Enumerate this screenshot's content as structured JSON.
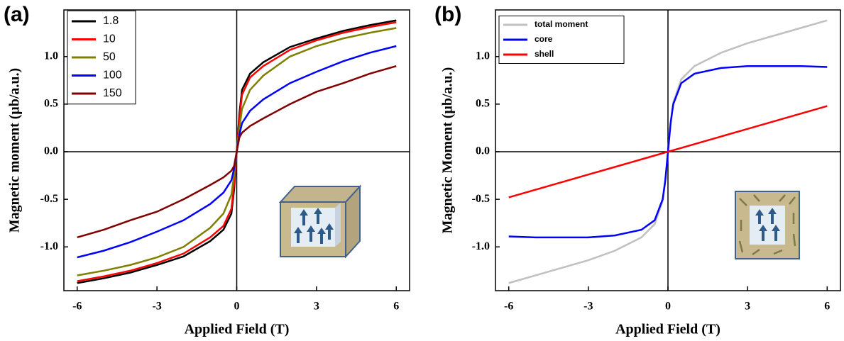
{
  "chart_data": [
    {
      "type": "line",
      "panel_label": "(a)",
      "x_label": "Applied Field (T)",
      "y_label": "Magnetic moment (μb/a.u.)",
      "x": [
        -6,
        -5,
        -4,
        -3,
        -2,
        -1,
        -0.5,
        -0.2,
        -0.1,
        0,
        0.1,
        0.2,
        0.5,
        1,
        2,
        3,
        4,
        5,
        6
      ],
      "series": [
        {
          "name": "1.8",
          "color": "#000000",
          "values": [
            -1.38,
            -1.33,
            -1.27,
            -1.19,
            -1.1,
            -0.94,
            -0.82,
            -0.65,
            -0.4,
            0,
            0.4,
            0.65,
            0.82,
            0.94,
            1.1,
            1.19,
            1.27,
            1.33,
            1.38
          ]
        },
        {
          "name": "10",
          "color": "#ff0000",
          "values": [
            -1.36,
            -1.31,
            -1.25,
            -1.17,
            -1.07,
            -0.9,
            -0.78,
            -0.6,
            -0.35,
            0,
            0.35,
            0.6,
            0.78,
            0.9,
            1.07,
            1.17,
            1.25,
            1.31,
            1.36
          ]
        },
        {
          "name": "50",
          "color": "#808000",
          "values": [
            -1.3,
            -1.25,
            -1.19,
            -1.11,
            -1.0,
            -0.8,
            -0.65,
            -0.45,
            -0.25,
            0,
            0.25,
            0.45,
            0.65,
            0.8,
            1.0,
            1.11,
            1.19,
            1.25,
            1.3
          ]
        },
        {
          "name": "100",
          "color": "#0000ff",
          "values": [
            -1.11,
            -1.04,
            -0.95,
            -0.84,
            -0.72,
            -0.55,
            -0.43,
            -0.3,
            -0.18,
            0,
            0.18,
            0.3,
            0.43,
            0.55,
            0.72,
            0.84,
            0.95,
            1.04,
            1.11
          ]
        },
        {
          "name": "150",
          "color": "#800000",
          "values": [
            -0.9,
            -0.82,
            -0.72,
            -0.63,
            -0.5,
            -0.35,
            -0.27,
            -0.2,
            -0.15,
            0,
            0.15,
            0.2,
            0.27,
            0.35,
            0.5,
            0.63,
            0.72,
            0.82,
            0.9
          ]
        }
      ],
      "xlim": [
        -6.5,
        6.5
      ],
      "xticks": [
        -6,
        -3,
        0,
        3,
        6
      ],
      "ylim": [
        -1.46,
        1.49
      ],
      "yticks": [
        {
          "value": -1,
          "label": "-1.0"
        },
        {
          "value": -0.5,
          "label": "-0.5"
        },
        {
          "value": 0,
          "label": "0.0"
        },
        {
          "value": 0.5,
          "label": "0.5"
        },
        {
          "value": 1,
          "label": "1.0"
        }
      ],
      "legend": "upper left"
    },
    {
      "type": "line",
      "panel_label": "(b)",
      "x_label": "Applied Field (T)",
      "y_label": "Magnetic Moment (μb/a.u.)",
      "x": [
        -6,
        -5,
        -4,
        -3,
        -2,
        -1,
        -0.5,
        -0.2,
        -0.1,
        0,
        0.1,
        0.2,
        0.5,
        1,
        2,
        3,
        4,
        5,
        6
      ],
      "series": [
        {
          "name": "total moment",
          "color": "#c0c0c0",
          "values": [
            -1.38,
            -1.3,
            -1.22,
            -1.14,
            -1.04,
            -0.9,
            -0.76,
            -0.52,
            -0.31,
            0,
            0.31,
            0.52,
            0.76,
            0.9,
            1.04,
            1.14,
            1.22,
            1.3,
            1.38
          ]
        },
        {
          "name": "core",
          "color": "#0000ff",
          "values": [
            -0.89,
            -0.9,
            -0.9,
            -0.9,
            -0.88,
            -0.82,
            -0.72,
            -0.5,
            -0.3,
            0,
            0.3,
            0.5,
            0.72,
            0.82,
            0.88,
            0.9,
            0.9,
            0.9,
            0.89
          ]
        },
        {
          "name": "shell",
          "color": "#ff0000",
          "values": [
            -0.48,
            -0.4,
            -0.32,
            -0.24,
            -0.16,
            -0.08,
            -0.04,
            -0.016,
            -0.008,
            0,
            0.008,
            0.016,
            0.04,
            0.08,
            0.16,
            0.24,
            0.32,
            0.4,
            0.48
          ]
        }
      ],
      "xlim": [
        -6.5,
        6.5
      ],
      "xticks": [
        -6,
        -3,
        0,
        3,
        6
      ],
      "ylim": [
        -1.46,
        1.49
      ],
      "yticks": [
        {
          "value": -1,
          "label": "-1.0"
        },
        {
          "value": -0.5,
          "label": "-0.5"
        },
        {
          "value": 0,
          "label": "0.0"
        },
        {
          "value": 0.5,
          "label": "0.5"
        },
        {
          "value": 1,
          "label": "1.0"
        }
      ],
      "legend": "upper left"
    }
  ]
}
